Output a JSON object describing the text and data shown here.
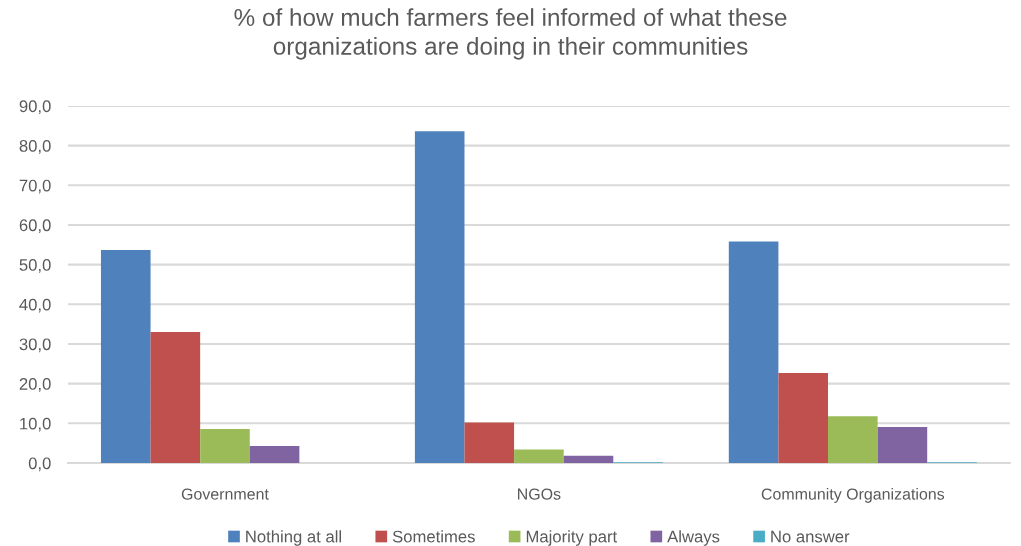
{
  "chart_data": {
    "type": "bar",
    "title": "% of how much farmers feel informed of what these\norganizations are doing in their communities",
    "categories": [
      "Government",
      "NGOs",
      "Community Organizations"
    ],
    "series": [
      {
        "name": "Nothing at all",
        "color": "#4f81bd",
        "values": [
          53.7,
          83.6,
          55.8
        ]
      },
      {
        "name": "Sometimes",
        "color": "#c0504d",
        "values": [
          33.0,
          10.2,
          22.7
        ]
      },
      {
        "name": "Majority part",
        "color": "#9bbb59",
        "values": [
          8.6,
          3.4,
          11.8
        ]
      },
      {
        "name": "Always",
        "color": "#8064a2",
        "values": [
          4.3,
          1.8,
          9.1
        ]
      },
      {
        "name": "No answer",
        "color": "#4bacc6",
        "values": [
          0,
          0.2,
          0.2
        ]
      }
    ],
    "ylim": [
      0,
      90
    ],
    "yticks": [
      {
        "value": 0,
        "label": "0,0"
      },
      {
        "value": 10,
        "label": "10,0"
      },
      {
        "value": 20,
        "label": "20,0"
      },
      {
        "value": 30,
        "label": "30,0"
      },
      {
        "value": 40,
        "label": "40,0"
      },
      {
        "value": 50,
        "label": "50,0"
      },
      {
        "value": 60,
        "label": "60,0"
      },
      {
        "value": 70,
        "label": "70,0"
      },
      {
        "value": 80,
        "label": "80,0"
      },
      {
        "value": 90,
        "label": "90,0"
      }
    ],
    "grid": "y",
    "legend": "bottom"
  }
}
